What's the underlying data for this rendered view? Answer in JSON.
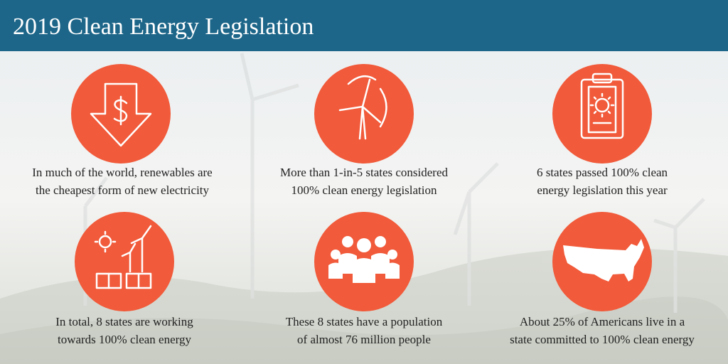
{
  "header": {
    "title": "2019 Clean Energy Legislation"
  },
  "items": [
    {
      "lines": [
        "In much of the world, renewables are",
        "the cheapest form of new electricity"
      ]
    },
    {
      "lines": [
        "More than 1-in-5 states considered",
        "100% clean energy legislation"
      ]
    },
    {
      "lines": [
        "6 states passed 100% clean",
        "energy legislation this year"
      ]
    },
    {
      "lines": [
        "In total, 8 states are working",
        "towards 100% clean energy"
      ]
    },
    {
      "lines": [
        "These 8 states have a population",
        "of almost 76 million people"
      ]
    },
    {
      "lines": [
        "About 25% of Americans live in a",
        "state committed to 100% clean energy"
      ]
    }
  ]
}
